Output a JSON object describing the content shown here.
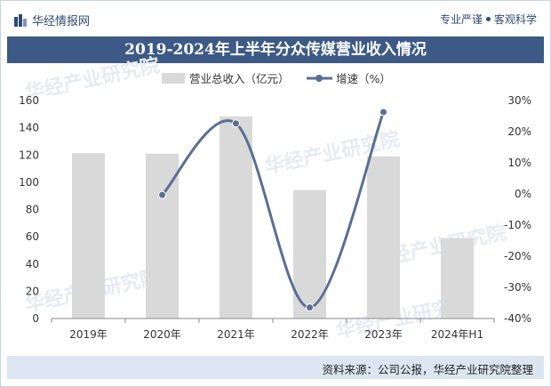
{
  "header": {
    "brand": "华经情报网",
    "tagline_left": "专业严谨",
    "tagline_right": "客观科学",
    "brand_icon": "bar-logo-icon"
  },
  "footer": {
    "source": "资料来源：公司公报，华经产业研究院整理"
  },
  "watermark": "华经产业研究院",
  "colors": {
    "bar": "#d9d9d9",
    "line": "#5a6f94",
    "title_bg": "#3d5a86",
    "footer_bg": "#dbe6f2"
  },
  "chart_data": {
    "type": "bar",
    "title": "2019-2024年上半年分众传媒营业收入情况",
    "categories": [
      "2019年",
      "2020年",
      "2021年",
      "2022年",
      "2023年",
      "2024年H1"
    ],
    "series": [
      {
        "name": "营业总收入（亿元）",
        "type": "bar",
        "axis": "left",
        "values": [
          121.36,
          120.97,
          148.35,
          94.25,
          119.04,
          59.07
        ]
      },
      {
        "name": "增速（%）",
        "type": "line",
        "axis": "right",
        "values": [
          null,
          -0.32,
          22.64,
          -36.47,
          26.3,
          null
        ]
      }
    ],
    "y_left": {
      "min": 0,
      "max": 160,
      "ticks": [
        "0",
        "20",
        "40",
        "60",
        "80",
        "100",
        "120",
        "140",
        "160"
      ]
    },
    "y_right": {
      "min": -40,
      "max": 30,
      "ticks": [
        "-40%",
        "-30%",
        "-20%",
        "-10%",
        "0%",
        "10%",
        "20%",
        "30%"
      ]
    },
    "legend_position": "top-center",
    "grid": false
  }
}
